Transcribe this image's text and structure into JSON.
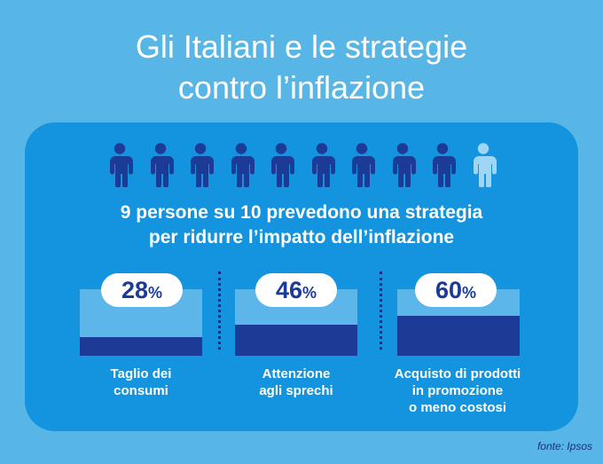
{
  "title_line1": "Gli Italiani e le strategie",
  "title_line2": "contro l’inflazione",
  "people": {
    "total": 10,
    "highlighted": 9,
    "icon": "person-icon",
    "color_active": "#1b3b96",
    "color_inactive": "#9fd6f4"
  },
  "headline_line1": "9 persone su 10 prevedono una strategia",
  "headline_line2": "per ridurre l’impatto dell’inflazione",
  "stats": [
    {
      "value": "28",
      "unit": "%",
      "share": 0.28,
      "label_lines": [
        "Taglio dei",
        "consumi"
      ]
    },
    {
      "value": "46",
      "unit": "%",
      "share": 0.46,
      "label_lines": [
        "Attenzione",
        "agli sprechi"
      ]
    },
    {
      "value": "60",
      "unit": "%",
      "share": 0.6,
      "label_lines": [
        "Acquisto di prodotti",
        "in promozione",
        "o meno costosi"
      ]
    }
  ],
  "colors": {
    "background": "#58b6e6",
    "panel": "#1493de",
    "bar_fill": "#1b3b96",
    "bar_empty": "#5cb6ea"
  },
  "source": "fonte: Ipsos"
}
